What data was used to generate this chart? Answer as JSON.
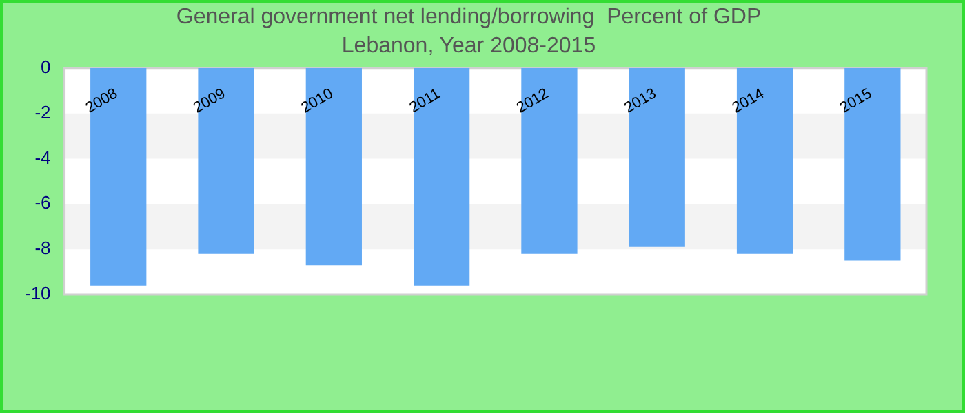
{
  "chart_data": {
    "type": "bar",
    "title": "General government net lending/borrowing  Percent of GDP",
    "subtitle": "Lebanon, Year 2008-2015",
    "categories": [
      "2008",
      "2009",
      "2010",
      "2011",
      "2012",
      "2013",
      "2014",
      "2015"
    ],
    "values": [
      -9.6,
      -8.2,
      -8.7,
      -9.6,
      -8.2,
      -7.9,
      -8.2,
      -8.5
    ],
    "color": "#62a9f4",
    "ylim": [
      -10,
      0
    ],
    "yticks": [
      -10,
      -8,
      -6,
      -4,
      -2,
      0
    ],
    "legend": false
  }
}
